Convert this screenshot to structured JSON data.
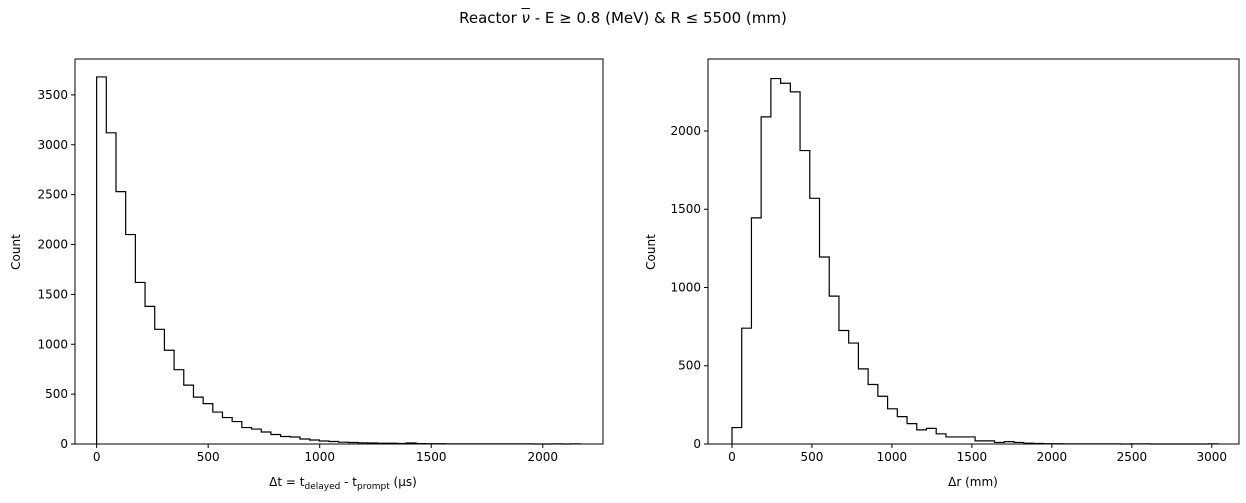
{
  "title": {
    "prefix": "Reactor ",
    "nu": "ν",
    "rest": " - E  ≥  0.8 (MeV) & R  ≤  5500 (mm)"
  },
  "chart_data": [
    {
      "type": "histogram",
      "style": "step",
      "color": "#000000",
      "xlabel": {
        "pre": "Δt = t",
        "sub1": "delayed",
        "mid": " - t",
        "sub2": "prompt",
        "post": " (μs)"
      },
      "ylabel": "Count",
      "xlim": [
        -97,
        2270
      ],
      "ylim": [
        0,
        3860
      ],
      "xticks": [
        0,
        500,
        1000,
        1500,
        2000
      ],
      "yticks": [
        0,
        500,
        1000,
        1500,
        2000,
        2500,
        3000,
        3500
      ],
      "bin_edges": [
        0,
        43.4,
        86.8,
        130.2,
        173.6,
        217,
        260.4,
        303.8,
        347.2,
        390.6,
        434,
        477.4,
        520.8,
        564.2,
        607.6,
        651,
        694.4,
        737.8,
        781.2,
        824.6,
        868,
        911.4,
        954.8,
        998.2,
        1041.6,
        1085,
        1128.4,
        1171.8,
        1215.2,
        1258.6,
        1302,
        1345.4,
        1388.8,
        1432.2,
        1475.6,
        1519,
        1562.4,
        1605.8,
        1649.2,
        1692.6,
        1736,
        1779.4,
        1822.8,
        1866.2,
        1909.6,
        1953,
        1996.4,
        2039.8,
        2083.2,
        2126.6,
        2170
      ],
      "counts": [
        3680,
        3120,
        2530,
        2100,
        1620,
        1380,
        1150,
        940,
        745,
        590,
        470,
        405,
        320,
        265,
        225,
        165,
        150,
        120,
        95,
        75,
        70,
        50,
        40,
        30,
        25,
        18,
        15,
        12,
        10,
        8,
        8,
        5,
        10,
        4,
        3,
        3,
        2,
        2,
        2,
        1,
        1,
        1,
        1,
        1,
        1,
        0,
        0,
        1,
        0,
        1
      ]
    },
    {
      "type": "histogram",
      "style": "step",
      "color": "#000000",
      "xlabel": "Δr (mm)",
      "ylabel": "Count",
      "xlim": [
        -150,
        3170
      ],
      "ylim": [
        0,
        2460
      ],
      "xticks": [
        0,
        500,
        1000,
        1500,
        2000,
        2500,
        3000
      ],
      "yticks": [
        0,
        500,
        1000,
        1500,
        2000
      ],
      "bin_edges": [
        0,
        60.8,
        121.6,
        182.4,
        243.2,
        304,
        364.8,
        425.6,
        486.4,
        547.2,
        608,
        668.8,
        729.6,
        790.4,
        851.2,
        912,
        972.8,
        1033.6,
        1094.4,
        1155.2,
        1216,
        1276.8,
        1337.6,
        1398.4,
        1459.2,
        1520,
        1580.8,
        1641.6,
        1702.4,
        1763.2,
        1824,
        1884.8,
        1945.6,
        2006.4,
        2067.2,
        2128,
        2188.8,
        2249.6,
        2310.4,
        2371.2,
        2432,
        2492.8,
        2553.6,
        2614.4,
        2675.2,
        2736,
        2796.8,
        2857.6,
        2918.4,
        2979.2,
        3040
      ],
      "counts": [
        105,
        740,
        1445,
        2090,
        2335,
        2305,
        2250,
        1875,
        1570,
        1195,
        945,
        725,
        645,
        480,
        380,
        305,
        225,
        175,
        130,
        90,
        100,
        65,
        45,
        45,
        45,
        20,
        20,
        10,
        15,
        10,
        5,
        3,
        2,
        2,
        1,
        1,
        1,
        1,
        1,
        1,
        0,
        1,
        1,
        0,
        0,
        0,
        0,
        0,
        0,
        1
      ]
    }
  ]
}
